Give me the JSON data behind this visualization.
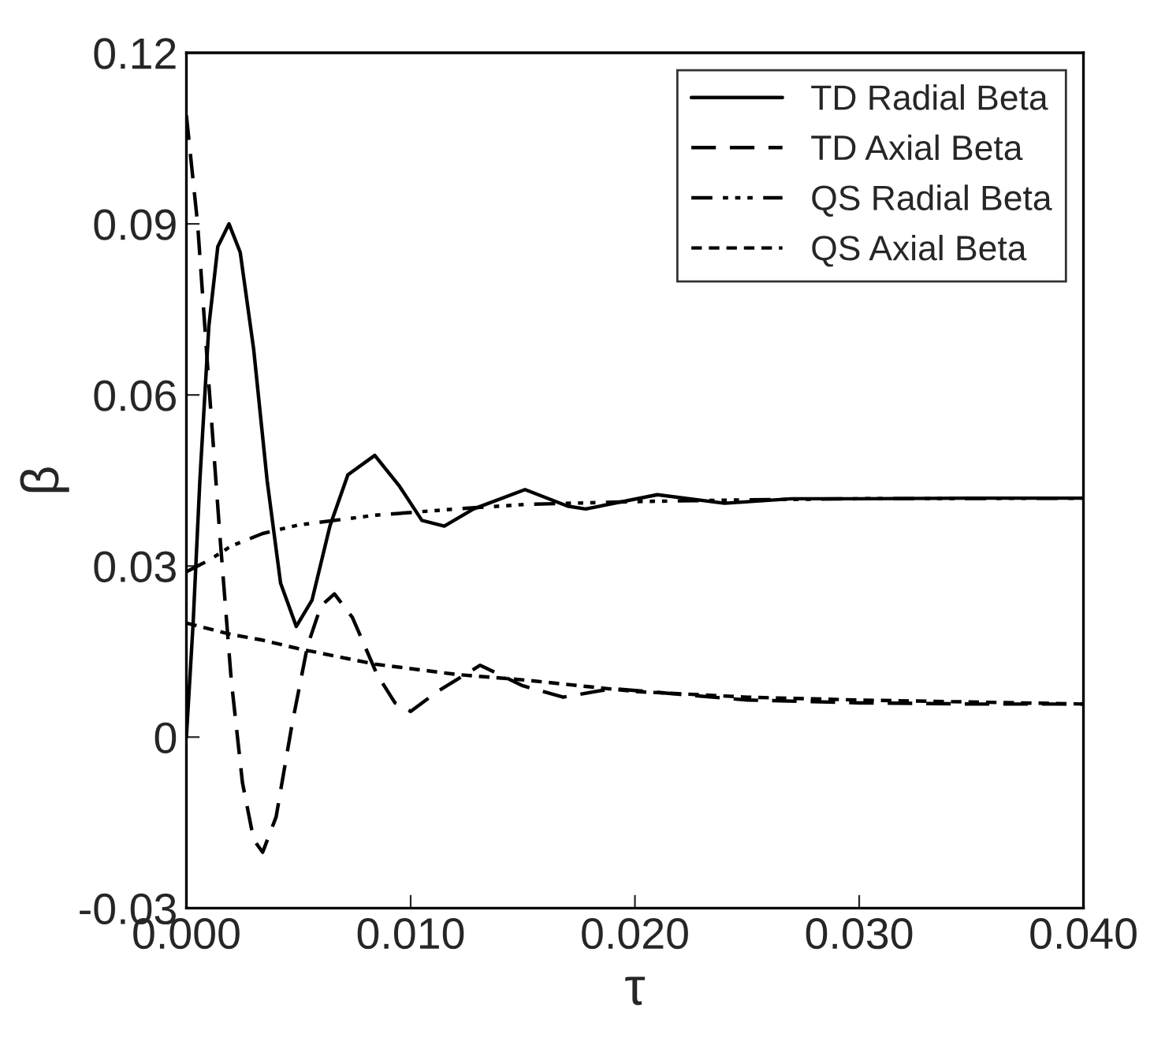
{
  "chart_data": {
    "type": "line",
    "xlabel": "τ",
    "ylabel": "β",
    "xlim": [
      0,
      0.04
    ],
    "ylim": [
      -0.03,
      0.12
    ],
    "xticks": [
      {
        "value": 0,
        "label": "0.000"
      },
      {
        "value": 0.01,
        "label": "0.010"
      },
      {
        "value": 0.02,
        "label": "0.020"
      },
      {
        "value": 0.03,
        "label": "0.030"
      },
      {
        "value": 0.04,
        "label": "0.040"
      }
    ],
    "yticks": [
      -0.03,
      0,
      0.03,
      0.06,
      0.09,
      0.12
    ],
    "grid": false,
    "legend": "top right",
    "series": [
      {
        "name": "TD Radial Beta",
        "color": "#000000",
        "line_style": "solid",
        "x": [
          0,
          0.0003,
          0.0006,
          0.001,
          0.0014,
          0.0019,
          0.0024,
          0.003,
          0.0036,
          0.0042,
          0.0049,
          0.0056,
          0.0064,
          0.0072,
          0.0084,
          0.0095,
          0.0105,
          0.0115,
          0.0128,
          0.0151,
          0.017,
          0.0178,
          0.021,
          0.024,
          0.027,
          0.03,
          0.035,
          0.04
        ],
        "values": [
          0,
          0.02,
          0.045,
          0.072,
          0.086,
          0.09,
          0.085,
          0.068,
          0.045,
          0.027,
          0.0194,
          0.024,
          0.037,
          0.046,
          0.0494,
          0.044,
          0.038,
          0.037,
          0.04,
          0.0434,
          0.0405,
          0.04,
          0.0425,
          0.041,
          0.0418,
          0.0418,
          0.0419,
          0.0419
        ]
      },
      {
        "name": "TD Axial Beta",
        "color": "#000000",
        "line_style": "dashed",
        "x": [
          0,
          0.0005,
          0.001,
          0.0015,
          0.002,
          0.0025,
          0.003,
          0.0034,
          0.004,
          0.0047,
          0.0054,
          0.006,
          0.0066,
          0.0074,
          0.0085,
          0.0093,
          0.01,
          0.0112,
          0.0131,
          0.015,
          0.0168,
          0.019,
          0.022,
          0.025,
          0.03,
          0.035,
          0.04
        ],
        "values": [
          0.109,
          0.09,
          0.062,
          0.035,
          0.01,
          -0.008,
          -0.018,
          -0.0202,
          -0.014,
          0.002,
          0.016,
          0.023,
          0.0251,
          0.021,
          0.011,
          0.006,
          0.0045,
          0.008,
          0.0126,
          0.009,
          0.007,
          0.0085,
          0.0075,
          0.0065,
          0.006,
          0.0058,
          0.0058
        ]
      },
      {
        "name": "QS Radial Beta",
        "color": "#000000",
        "line_style": "dashdot",
        "x": [
          0,
          0.001,
          0.002,
          0.0034,
          0.005,
          0.0084,
          0.012,
          0.0151,
          0.02,
          0.025,
          0.03,
          0.04
        ],
        "values": [
          0.029,
          0.031,
          0.0335,
          0.0357,
          0.0372,
          0.0389,
          0.04,
          0.0408,
          0.0413,
          0.0416,
          0.0418,
          0.0419
        ]
      },
      {
        "name": "QS Axial Beta",
        "color": "#000000",
        "line_style": "dotted",
        "x": [
          0,
          0.001,
          0.002,
          0.0034,
          0.005,
          0.0084,
          0.012,
          0.0151,
          0.02,
          0.025,
          0.03,
          0.04
        ],
        "values": [
          0.02,
          0.019,
          0.018,
          0.017,
          0.0155,
          0.0128,
          0.011,
          0.01,
          0.008,
          0.007,
          0.0065,
          0.0058
        ]
      }
    ]
  }
}
